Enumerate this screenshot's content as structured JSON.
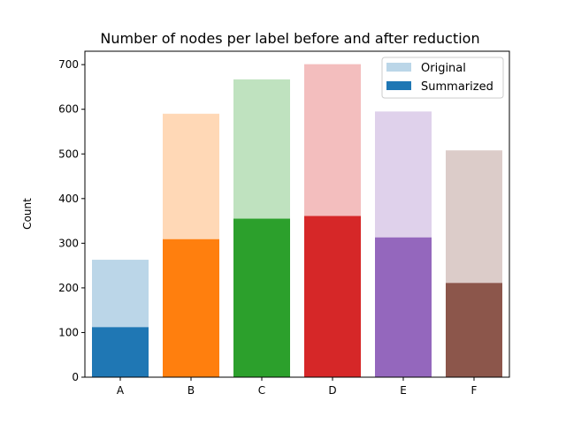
{
  "chart_data": {
    "type": "bar",
    "title": "Number of nodes per label before and after reduction",
    "xlabel": "",
    "ylabel": "Count",
    "categories": [
      "A",
      "B",
      "C",
      "D",
      "E",
      "F"
    ],
    "ylim": [
      0,
      730
    ],
    "yticks": [
      0,
      100,
      200,
      300,
      400,
      500,
      600,
      700
    ],
    "grid": false,
    "legend_position": "upper right",
    "series": [
      {
        "name": "Original",
        "values": [
          263,
          590,
          667,
          701,
          595,
          508
        ]
      },
      {
        "name": "Summarized",
        "values": [
          112,
          309,
          355,
          361,
          313,
          211
        ]
      }
    ],
    "colors": [
      "#1f77b4",
      "#ff7f0e",
      "#2ca02c",
      "#d62728",
      "#9467bd",
      "#8c564b"
    ],
    "original_alpha": 0.3
  }
}
